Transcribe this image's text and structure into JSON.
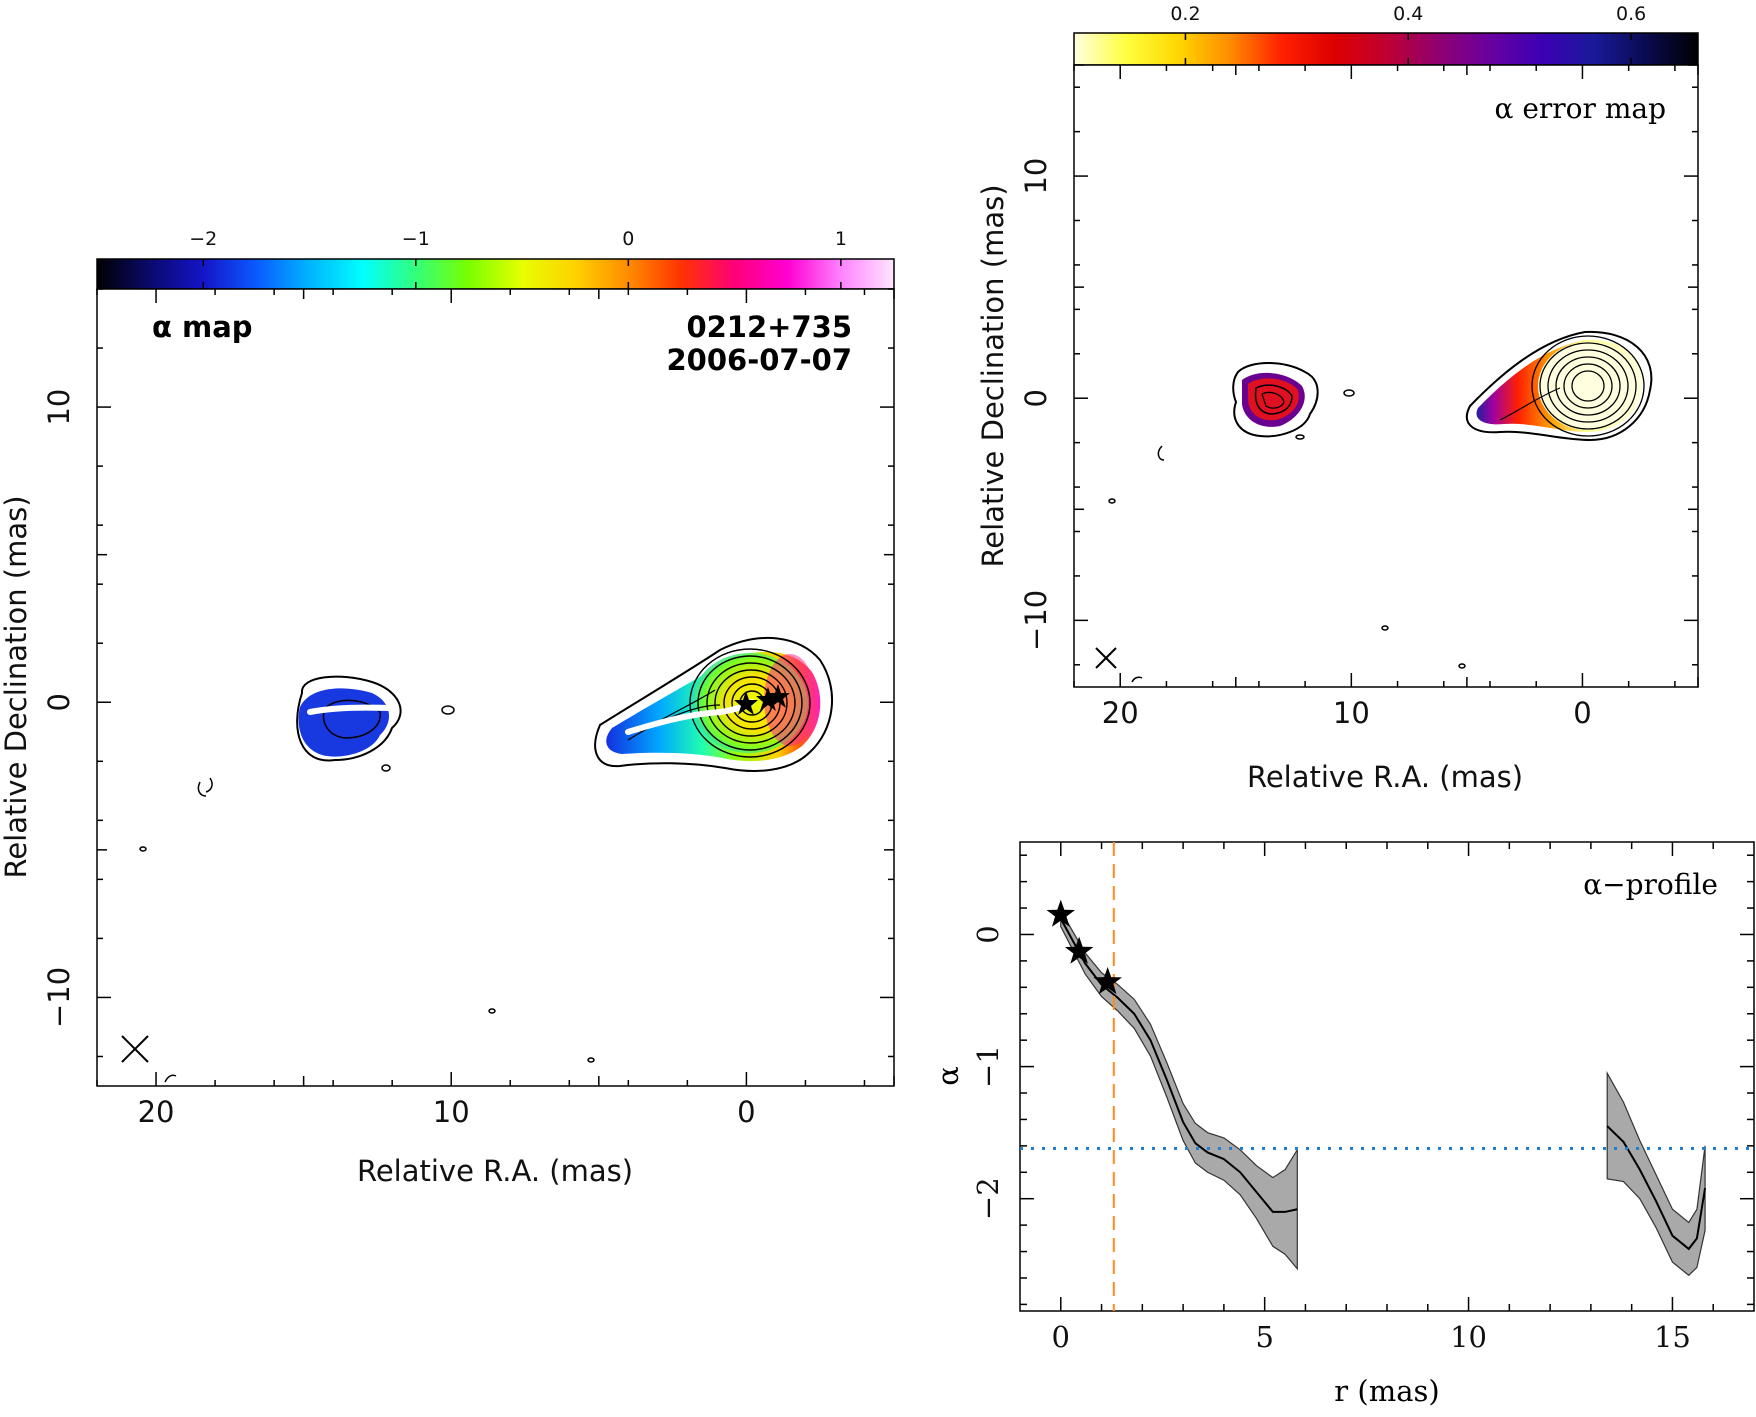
{
  "colors": {
    "alpha_colormap": [
      "#000000",
      "#0a0a6e",
      "#1414c8",
      "#0a5aff",
      "#00b4ff",
      "#00ffff",
      "#32ff7a",
      "#7aff00",
      "#e6ff00",
      "#ffd200",
      "#ff8c00",
      "#ff3200",
      "#ff0078",
      "#ff00d2",
      "#ff82ff",
      "#ffe6ff"
    ],
    "error_colormap": [
      "#ffffe0",
      "#ffff40",
      "#ffd700",
      "#ff8c00",
      "#ff2000",
      "#dd0000",
      "#c00030",
      "#900070",
      "#6a00a0",
      "#3c00b4",
      "#1a1a9a",
      "#0a0a50",
      "#000000"
    ],
    "profile_band": "#a9a9a9",
    "vline": "#ff8c1a",
    "hline": "#1f7fd0"
  },
  "alpha_map": {
    "label": "α map",
    "source": "0212+735",
    "date": "2006-07-07",
    "xlabel": "Relative R.A. (mas)",
    "ylabel": "Relative Declination (mas)",
    "colorbar": {
      "range": [
        -2.5,
        1.25
      ],
      "ticks": [
        "−2",
        "−1",
        "0",
        "1"
      ],
      "tick_values": [
        -2,
        -1,
        0,
        1
      ]
    },
    "x_ticks": [
      "20",
      "10",
      "0"
    ],
    "x_tick_values": [
      20,
      10,
      0
    ],
    "y_ticks": [
      "10",
      "0",
      "−10"
    ],
    "y_tick_values": [
      10,
      0,
      -10
    ],
    "xlim": [
      22,
      -5
    ],
    "ylim": [
      -13,
      14
    ]
  },
  "error_map": {
    "label": "α error map",
    "xlabel": "Relative R.A. (mas)",
    "ylabel": "Relative Declination (mas)",
    "colorbar": {
      "range": [
        0.1,
        0.66
      ],
      "ticks": [
        "0.2",
        "0.4",
        "0.6"
      ],
      "tick_values": [
        0.2,
        0.4,
        0.6
      ]
    },
    "x_ticks": [
      "20",
      "10",
      "0"
    ],
    "x_tick_values": [
      20,
      10,
      0
    ],
    "y_ticks": [
      "10",
      "0",
      "−10"
    ],
    "y_tick_values": [
      10,
      0,
      -10
    ],
    "xlim": [
      22,
      -5
    ],
    "ylim": [
      -13,
      15
    ]
  },
  "chart_data": {
    "type": "line",
    "label": "α−profile",
    "xlabel": "r (mas)",
    "ylabel": "α",
    "xlim": [
      -1,
      17
    ],
    "ylim": [
      -2.85,
      0.7
    ],
    "x_ticks": [
      "0",
      "5",
      "10",
      "15"
    ],
    "x_tick_values": [
      0,
      5,
      10,
      15
    ],
    "y_ticks": [
      "0",
      "−1",
      "−2"
    ],
    "y_tick_values": [
      0,
      -1,
      -2
    ],
    "segments": [
      {
        "x": [
          0.0,
          0.3,
          0.6,
          1.0,
          1.4,
          1.8,
          2.2,
          2.6,
          3.0,
          3.3,
          3.6,
          4.0,
          4.4,
          4.8,
          5.2,
          5.5,
          5.8
        ],
        "y": [
          0.12,
          -0.05,
          -0.22,
          -0.38,
          -0.48,
          -0.6,
          -0.8,
          -1.1,
          -1.42,
          -1.58,
          -1.65,
          -1.7,
          -1.8,
          -1.95,
          -2.1,
          -2.1,
          -2.08
        ],
        "err": [
          0.06,
          0.07,
          0.08,
          0.09,
          0.1,
          0.11,
          0.12,
          0.13,
          0.14,
          0.15,
          0.15,
          0.16,
          0.17,
          0.2,
          0.26,
          0.32,
          0.45
        ]
      },
      {
        "x": [
          13.4,
          13.8,
          14.2,
          14.6,
          15.0,
          15.4,
          15.6,
          15.8
        ],
        "y": [
          -1.45,
          -1.57,
          -1.78,
          -2.02,
          -2.28,
          -2.38,
          -2.3,
          -1.92
        ],
        "err": [
          0.4,
          0.3,
          0.22,
          0.2,
          0.2,
          0.2,
          0.22,
          0.32
        ]
      }
    ],
    "stars": {
      "x": [
        0.0,
        0.45,
        1.15
      ],
      "y": [
        0.15,
        -0.13,
        -0.36
      ]
    },
    "vline_x": 1.3,
    "hline_y": -1.62
  }
}
